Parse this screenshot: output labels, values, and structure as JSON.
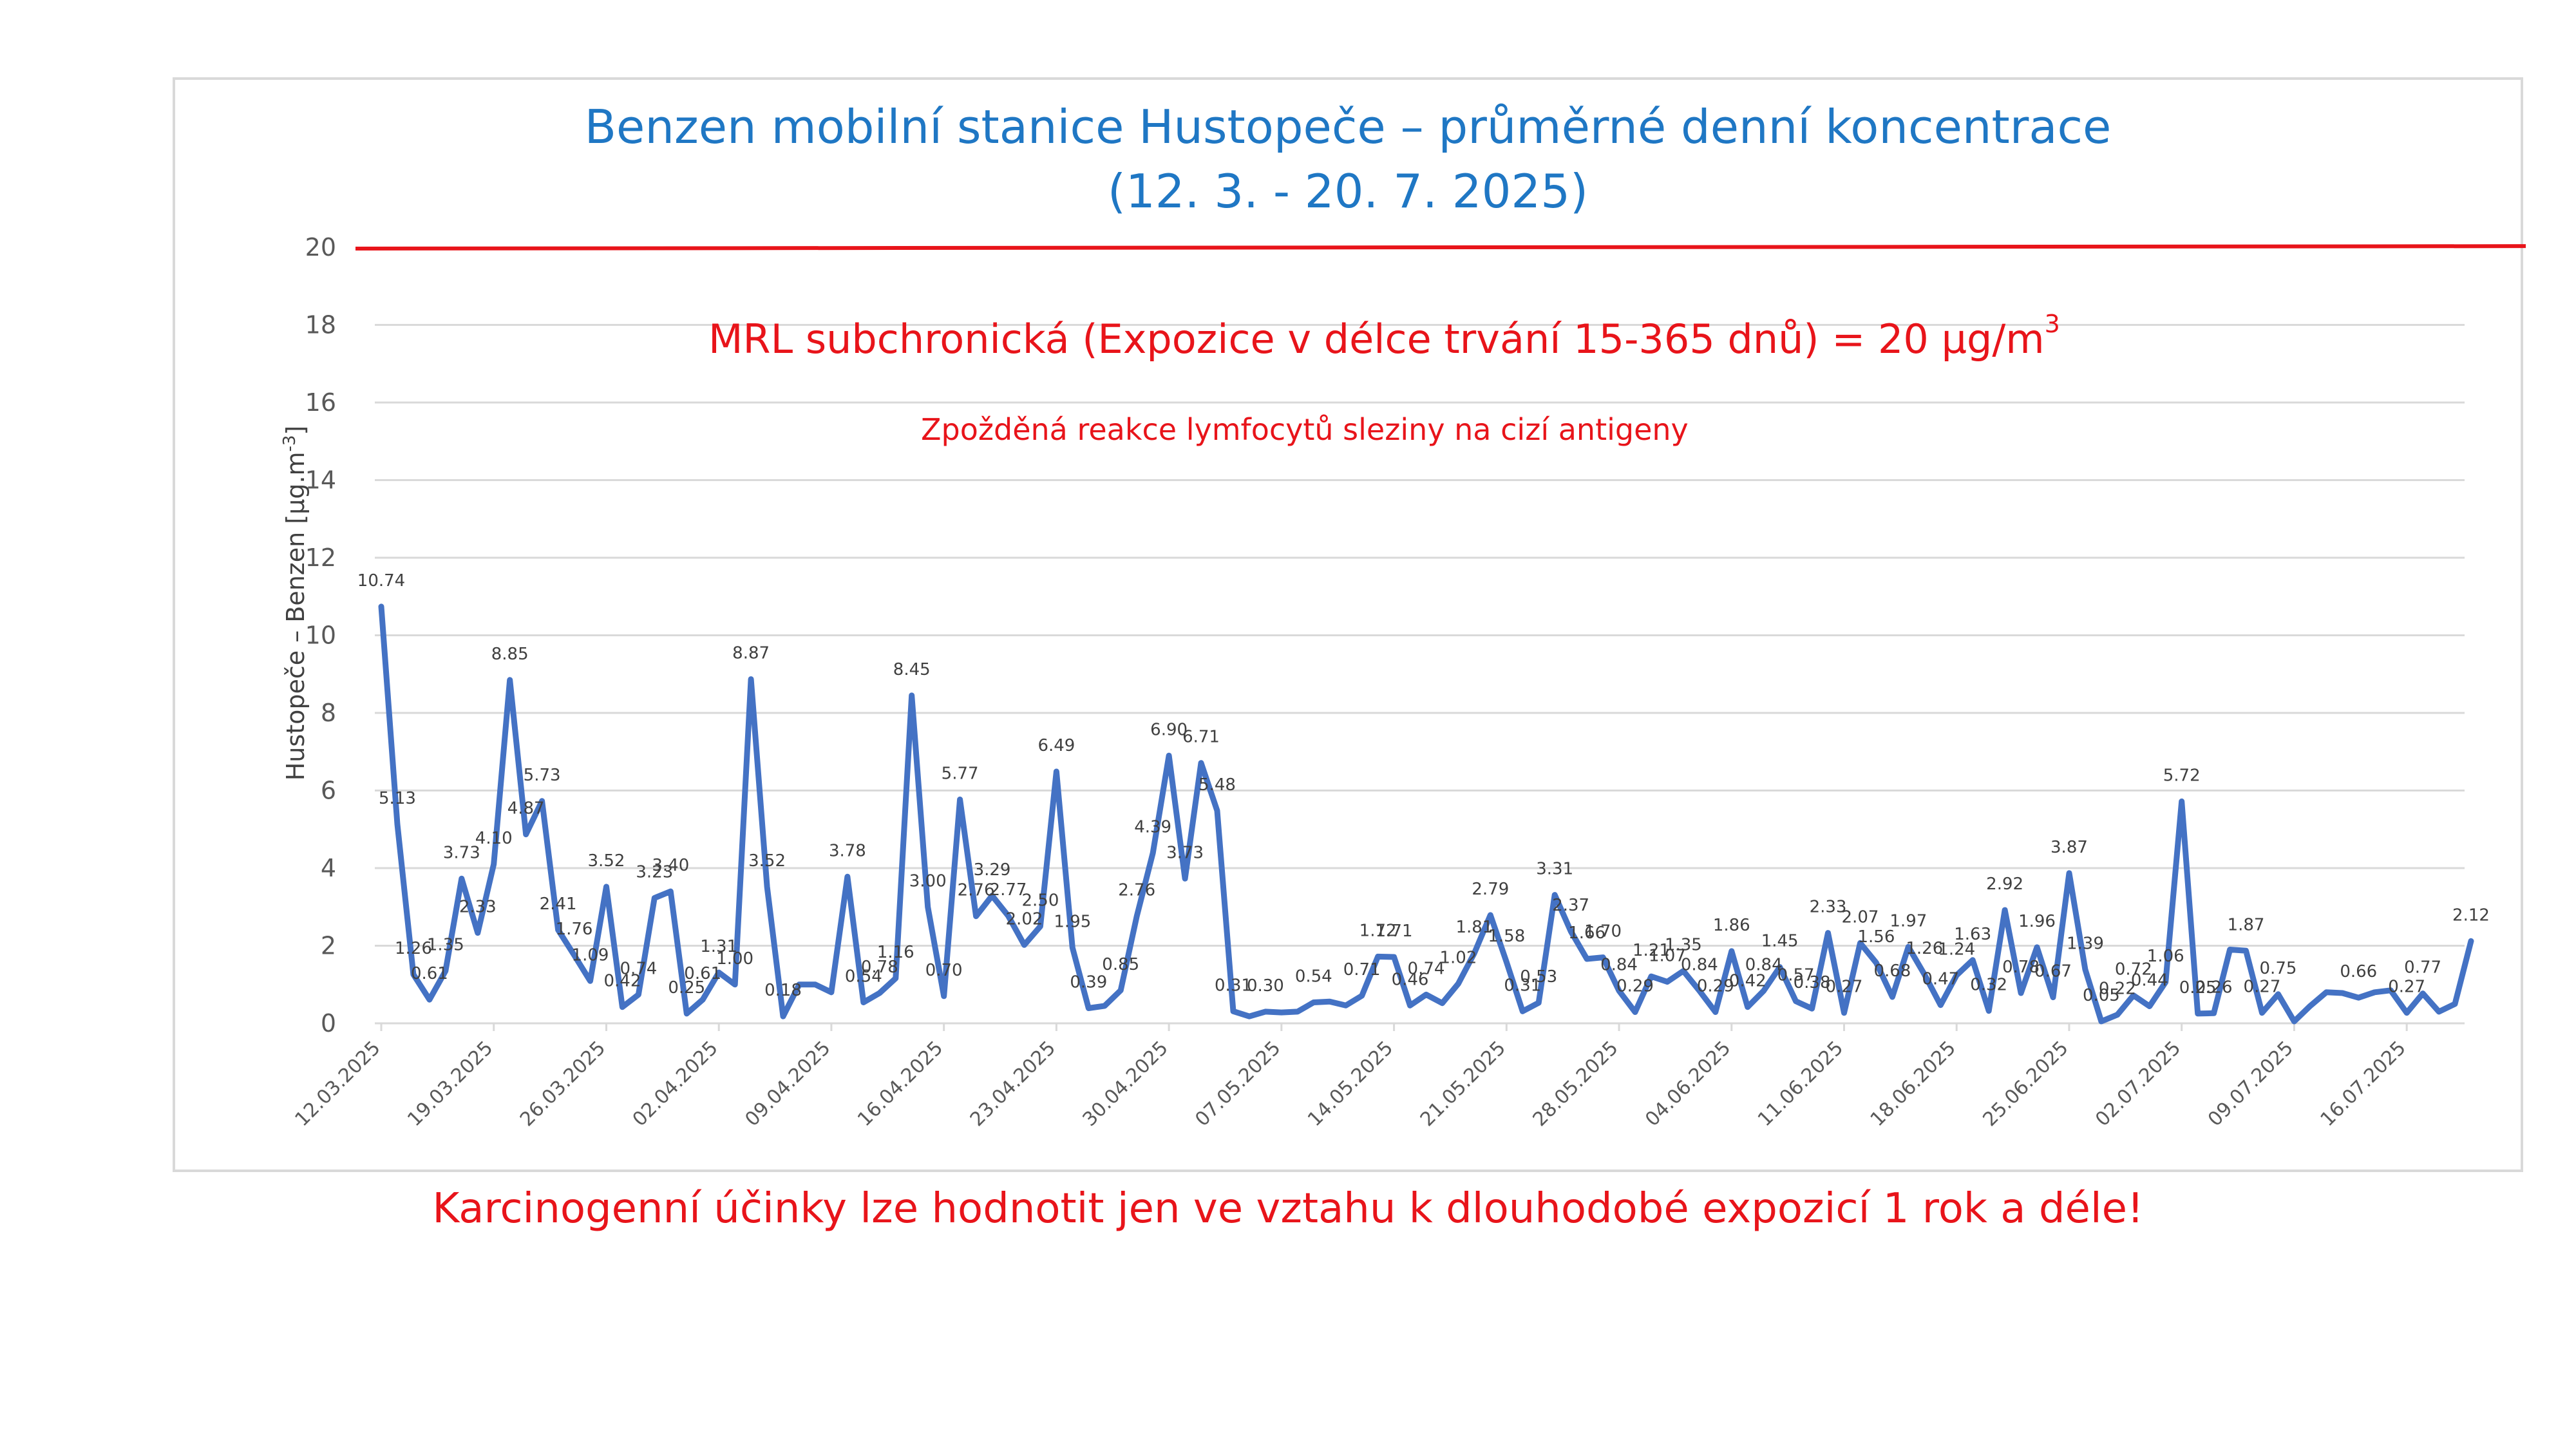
{
  "colors": {
    "title": "#1f77c4",
    "series": "#4472c4",
    "limit": "#e8141a",
    "grid": "#d9d9d9"
  },
  "chart_data": {
    "type": "line",
    "title_line1": "Benzen mobilní stanice Hustopeče – průměrné denní koncentrace",
    "title_line2": "(12. 3. - 20. 7. 2025)",
    "ylabel": "Hustopeče – Benzen  [µg.m-3]",
    "ylim": [
      0,
      20
    ],
    "yticks": [
      "0",
      "2",
      "4",
      "6",
      "8",
      "10",
      "12",
      "14",
      "16",
      "18",
      "20"
    ],
    "grid": true,
    "limit_value": 20,
    "limit_label": "MRL subchronická (Expozice v délce trvání 15-365 dnů) = 20 µg/m",
    "limit_label_sup": "3",
    "limit_note": "Zpožděná reakce lymfocytů sleziny na cizí antigeny",
    "x_start": "12.03.2025",
    "x_tick_labels": [
      "12.03.2025",
      "19.03.2025",
      "26.03.2025",
      "02.04.2025",
      "09.04.2025",
      "16.04.2025",
      "23.04.2025",
      "30.04.2025",
      "07.05.2025",
      "14.05.2025",
      "21.05.2025",
      "28.05.2025",
      "04.06.2025",
      "11.06.2025",
      "18.06.2025",
      "25.06.2025",
      "02.07.2025",
      "09.07.2025",
      "16.07.2025"
    ],
    "series": [
      {
        "values": [
          10.74,
          5.13,
          1.26,
          0.61,
          1.35,
          3.73,
          2.33,
          4.1,
          8.85,
          4.87,
          5.73,
          2.41,
          1.76,
          1.09,
          3.52,
          0.42,
          0.74,
          3.23,
          3.4,
          0.25,
          0.61,
          1.31,
          1.0,
          8.87,
          3.52,
          0.18,
          1.0,
          1.0,
          0.8,
          3.78,
          0.54,
          0.78,
          1.16,
          8.45,
          3.0,
          0.7,
          5.77,
          2.76,
          3.29,
          2.77,
          2.02,
          2.5,
          6.49,
          1.95,
          0.39,
          0.45,
          0.85,
          2.76,
          4.39,
          6.9,
          3.73,
          6.71,
          5.48,
          0.31,
          0.18,
          0.3,
          0.28,
          0.3,
          0.54,
          0.56,
          0.46,
          0.71,
          1.72,
          1.71,
          0.46,
          0.74,
          0.52,
          1.02,
          1.81,
          2.79,
          1.58,
          0.31,
          0.53,
          3.31,
          2.37,
          1.66,
          1.7,
          0.84,
          0.29,
          1.21,
          1.07,
          1.35,
          0.84,
          0.29,
          1.86,
          0.42,
          0.84,
          1.45,
          0.57,
          0.38,
          2.33,
          0.27,
          2.07,
          1.56,
          0.68,
          1.97,
          1.26,
          0.47,
          1.24,
          1.63,
          0.32,
          2.92,
          0.78,
          1.96,
          0.67,
          3.87,
          1.39,
          0.05,
          0.22,
          0.72,
          0.44,
          1.06,
          5.72,
          0.25,
          0.26,
          1.9,
          1.87,
          0.27,
          0.75,
          0.05,
          0.45,
          0.8,
          0.78,
          0.66,
          0.8,
          0.85,
          0.27,
          0.77,
          0.3,
          0.5,
          2.12
        ]
      }
    ],
    "shown_labels": [
      {
        "i": 0,
        "t": "10.74"
      },
      {
        "i": 1,
        "t": "5.13"
      },
      {
        "i": 2,
        "t": "1.26"
      },
      {
        "i": 3,
        "t": "0.61"
      },
      {
        "i": 4,
        "t": "1.35"
      },
      {
        "i": 5,
        "t": "3.73"
      },
      {
        "i": 6,
        "t": "2.33"
      },
      {
        "i": 7,
        "t": "4.10"
      },
      {
        "i": 8,
        "t": "8.85"
      },
      {
        "i": 9,
        "t": "4.87"
      },
      {
        "i": 10,
        "t": "5.73"
      },
      {
        "i": 11,
        "t": "2.41"
      },
      {
        "i": 12,
        "t": "1.76"
      },
      {
        "i": 13,
        "t": "1.09"
      },
      {
        "i": 14,
        "t": "3.52"
      },
      {
        "i": 15,
        "t": "0.42"
      },
      {
        "i": 16,
        "t": "0.74"
      },
      {
        "i": 17,
        "t": "3.23"
      },
      {
        "i": 18,
        "t": "3.40"
      },
      {
        "i": 19,
        "t": "0.25"
      },
      {
        "i": 20,
        "t": "0.61"
      },
      {
        "i": 21,
        "t": "1.31"
      },
      {
        "i": 22,
        "t": "1.00"
      },
      {
        "i": 23,
        "t": "8.87"
      },
      {
        "i": 24,
        "t": "3.52"
      },
      {
        "i": 25,
        "t": "0.18"
      },
      {
        "i": 29,
        "t": "3.78"
      },
      {
        "i": 30,
        "t": "0.54"
      },
      {
        "i": 31,
        "t": "0.78"
      },
      {
        "i": 32,
        "t": "1.16"
      },
      {
        "i": 33,
        "t": "8.45"
      },
      {
        "i": 34,
        "t": "3.00"
      },
      {
        "i": 35,
        "t": "0.70"
      },
      {
        "i": 36,
        "t": "5.77"
      },
      {
        "i": 37,
        "t": "2.76"
      },
      {
        "i": 38,
        "t": "3.29"
      },
      {
        "i": 39,
        "t": "2.77"
      },
      {
        "i": 40,
        "t": "2.02"
      },
      {
        "i": 41,
        "t": "2.50"
      },
      {
        "i": 42,
        "t": "6.49"
      },
      {
        "i": 43,
        "t": "1.95"
      },
      {
        "i": 44,
        "t": "0.39"
      },
      {
        "i": 46,
        "t": "0.85"
      },
      {
        "i": 47,
        "t": "2.76"
      },
      {
        "i": 48,
        "t": "4.39"
      },
      {
        "i": 49,
        "t": "6.90"
      },
      {
        "i": 50,
        "t": "3.73"
      },
      {
        "i": 51,
        "t": "6.71"
      },
      {
        "i": 52,
        "t": "5.48"
      },
      {
        "i": 53,
        "t": "0.31"
      },
      {
        "i": 55,
        "t": "0.30"
      },
      {
        "i": 58,
        "t": "0.54"
      },
      {
        "i": 61,
        "t": "0.71"
      },
      {
        "i": 62,
        "t": "1.72"
      },
      {
        "i": 63,
        "t": "1.71"
      },
      {
        "i": 64,
        "t": "0.46"
      },
      {
        "i": 65,
        "t": "0.74"
      },
      {
        "i": 67,
        "t": "1.02"
      },
      {
        "i": 68,
        "t": "1.81"
      },
      {
        "i": 69,
        "t": "2.79"
      },
      {
        "i": 70,
        "t": "1.58"
      },
      {
        "i": 71,
        "t": "0.31"
      },
      {
        "i": 72,
        "t": "0.53"
      },
      {
        "i": 73,
        "t": "3.31"
      },
      {
        "i": 74,
        "t": "2.37"
      },
      {
        "i": 75,
        "t": "1.66"
      },
      {
        "i": 76,
        "t": "1.70"
      },
      {
        "i": 77,
        "t": "0.84"
      },
      {
        "i": 78,
        "t": "0.29"
      },
      {
        "i": 79,
        "t": "1.21"
      },
      {
        "i": 80,
        "t": "1.07"
      },
      {
        "i": 81,
        "t": "1.35"
      },
      {
        "i": 82,
        "t": "0.84"
      },
      {
        "i": 83,
        "t": "0.29"
      },
      {
        "i": 84,
        "t": "1.86"
      },
      {
        "i": 85,
        "t": "0.42"
      },
      {
        "i": 86,
        "t": "0.84"
      },
      {
        "i": 87,
        "t": "1.45"
      },
      {
        "i": 88,
        "t": "0.57"
      },
      {
        "i": 89,
        "t": "0.38"
      },
      {
        "i": 90,
        "t": "2.33"
      },
      {
        "i": 91,
        "t": "0.27"
      },
      {
        "i": 92,
        "t": "2.07"
      },
      {
        "i": 93,
        "t": "1.56"
      },
      {
        "i": 94,
        "t": "0.68"
      },
      {
        "i": 95,
        "t": "1.97"
      },
      {
        "i": 96,
        "t": "1.26"
      },
      {
        "i": 97,
        "t": "0.47"
      },
      {
        "i": 98,
        "t": "1.24"
      },
      {
        "i": 99,
        "t": "1.63"
      },
      {
        "i": 100,
        "t": "0.32"
      },
      {
        "i": 101,
        "t": "2.92"
      },
      {
        "i": 102,
        "t": "0.78"
      },
      {
        "i": 103,
        "t": "1.96"
      },
      {
        "i": 104,
        "t": "0.67"
      },
      {
        "i": 105,
        "t": "3.87"
      },
      {
        "i": 106,
        "t": "1.39"
      },
      {
        "i": 107,
        "t": "0.05"
      },
      {
        "i": 108,
        "t": "0.22"
      },
      {
        "i": 109,
        "t": "0.72"
      },
      {
        "i": 110,
        "t": "0.44"
      },
      {
        "i": 111,
        "t": "1.06"
      },
      {
        "i": 112,
        "t": "5.72"
      },
      {
        "i": 113,
        "t": "0.25"
      },
      {
        "i": 114,
        "t": "0.26"
      },
      {
        "i": 116,
        "t": "1.87"
      },
      {
        "i": 117,
        "t": "0.27"
      },
      {
        "i": 118,
        "t": "0.75"
      },
      {
        "i": 123,
        "t": "0.66"
      },
      {
        "i": 126,
        "t": "0.27"
      },
      {
        "i": 127,
        "t": "0.77"
      },
      {
        "i": 130,
        "t": "2.12"
      }
    ]
  },
  "footer_note": "Karcinogenní účinky lze hodnotit jen ve vztahu k dlouhodobé expozicí 1 rok a déle!"
}
